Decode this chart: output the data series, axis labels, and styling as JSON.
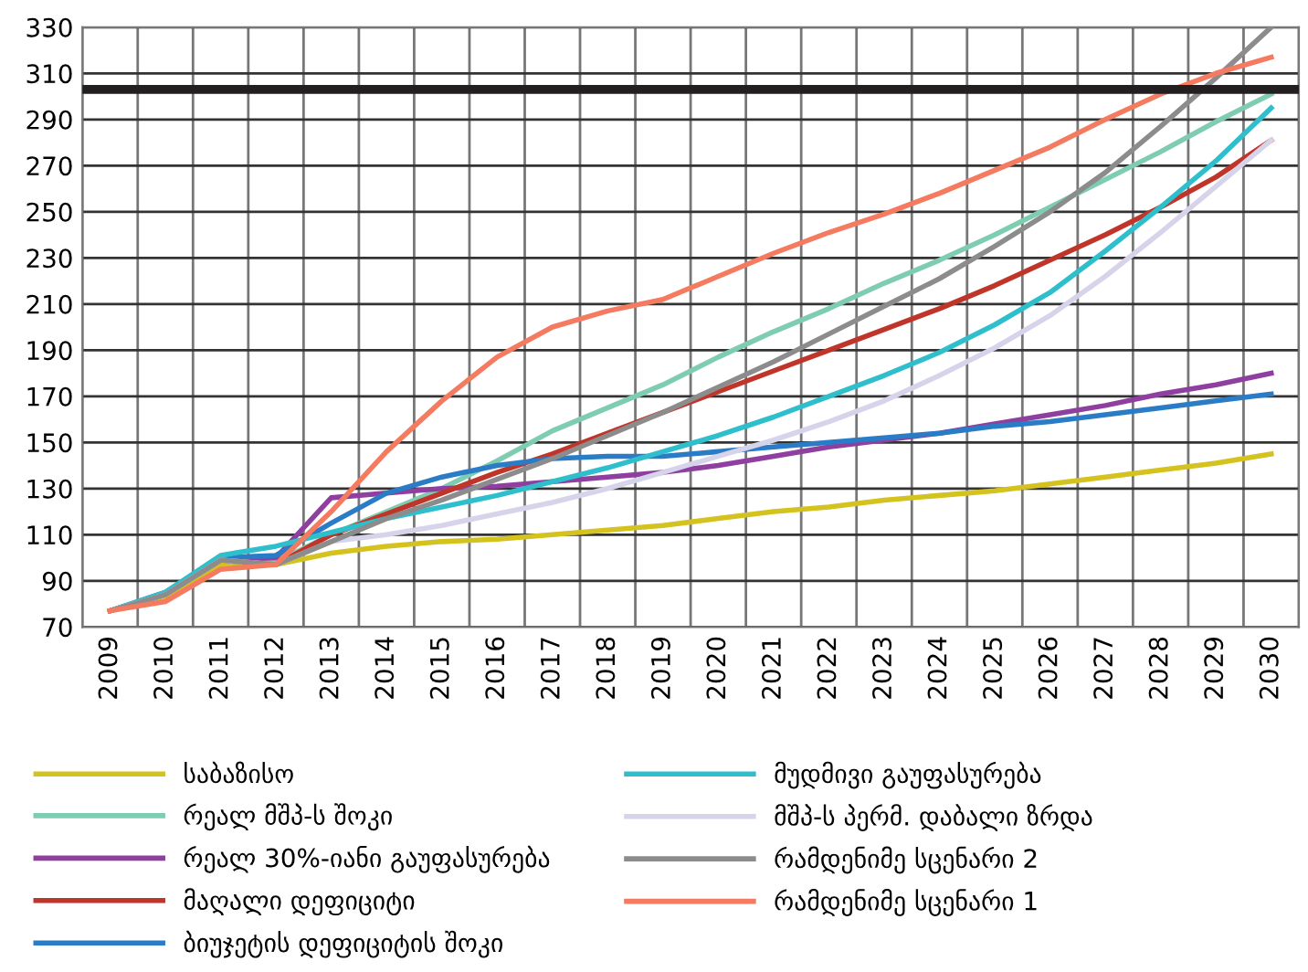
{
  "chart_data": {
    "type": "line",
    "categories": [
      "2009",
      "2010",
      "2011",
      "2012",
      "2013",
      "2014",
      "2015",
      "2016",
      "2017",
      "2018",
      "2019",
      "2020",
      "2021",
      "2022",
      "2023",
      "2024",
      "2025",
      "2026",
      "2027",
      "2028",
      "2029",
      "2030"
    ],
    "series": [
      {
        "name": "საბაზისო",
        "color": "#d4c21e",
        "values": [
          77,
          83,
          97,
          97,
          102,
          105,
          107,
          108,
          110,
          112,
          114,
          117,
          120,
          122,
          125,
          127,
          129,
          132,
          135,
          138,
          141,
          145
        ]
      },
      {
        "name": "რეალ მშპ-ს შოკი",
        "color": "#7ecdb0",
        "values": [
          77,
          84,
          100,
          98,
          110,
          120,
          130,
          142,
          155,
          165,
          175,
          187,
          198,
          208,
          219,
          229,
          240,
          252,
          264,
          276,
          289,
          301
        ]
      },
      {
        "name": "რეალ 30%-იანი გაუფასურება",
        "color": "#8e3fa0",
        "values": [
          77,
          84,
          99,
          100,
          126,
          128,
          130,
          131,
          133,
          135,
          137,
          140,
          144,
          148,
          151,
          154,
          158,
          162,
          166,
          171,
          175,
          180
        ]
      },
      {
        "name": "მაღალი დეფიციტი",
        "color": "#c0352a",
        "values": [
          77,
          84,
          99,
          97,
          110,
          119,
          128,
          137,
          145,
          154,
          163,
          172,
          181,
          190,
          199,
          208,
          218,
          229,
          240,
          252,
          265,
          281
        ]
      },
      {
        "name": "ბიუჯეტის დეფიციტის შოკი",
        "color": "#2a7cc7",
        "values": [
          77,
          85,
          100,
          101,
          115,
          128,
          135,
          140,
          143,
          144,
          144,
          146,
          148,
          150,
          152,
          154,
          157,
          159,
          162,
          165,
          168,
          171
        ]
      },
      {
        "name": "მუდმივი გაუფასურება",
        "color": "#2fbfcc",
        "values": [
          77,
          85,
          101,
          105,
          111,
          117,
          122,
          127,
          133,
          139,
          146,
          153,
          161,
          170,
          179,
          189,
          201,
          215,
          233,
          252,
          272,
          295
        ]
      },
      {
        "name": "მშპ-ს პერმ. დაბალი ზრდა",
        "color": "#d6d4ea",
        "values": [
          77,
          84,
          99,
          97,
          107,
          110,
          114,
          119,
          124,
          130,
          137,
          144,
          151,
          159,
          168,
          179,
          191,
          205,
          222,
          241,
          261,
          281
        ]
      },
      {
        "name": "რამდენიმე სცენარი 2",
        "color": "#8c8c8c",
        "values": [
          77,
          84,
          99,
          97,
          107,
          117,
          125,
          134,
          143,
          153,
          163,
          174,
          185,
          197,
          209,
          221,
          235,
          250,
          267,
          287,
          308,
          330
        ]
      },
      {
        "name": "რამდენიმე სცენარი 1",
        "color": "#f47a60",
        "values": [
          77,
          81,
          95,
          97,
          120,
          146,
          168,
          187,
          200,
          207,
          212,
          222,
          232,
          241,
          249,
          258,
          268,
          278,
          290,
          301,
          310,
          317
        ]
      }
    ],
    "ylim": [
      70,
      330
    ],
    "yticks": [
      70,
      90,
      110,
      130,
      150,
      170,
      190,
      210,
      230,
      250,
      270,
      290,
      310,
      330
    ],
    "ref_lines": [
      {
        "axis": "y",
        "value": 303,
        "color": "#231f20"
      }
    ],
    "grid": true,
    "legend": "bottom",
    "marker": "none",
    "line_style": "solid"
  }
}
